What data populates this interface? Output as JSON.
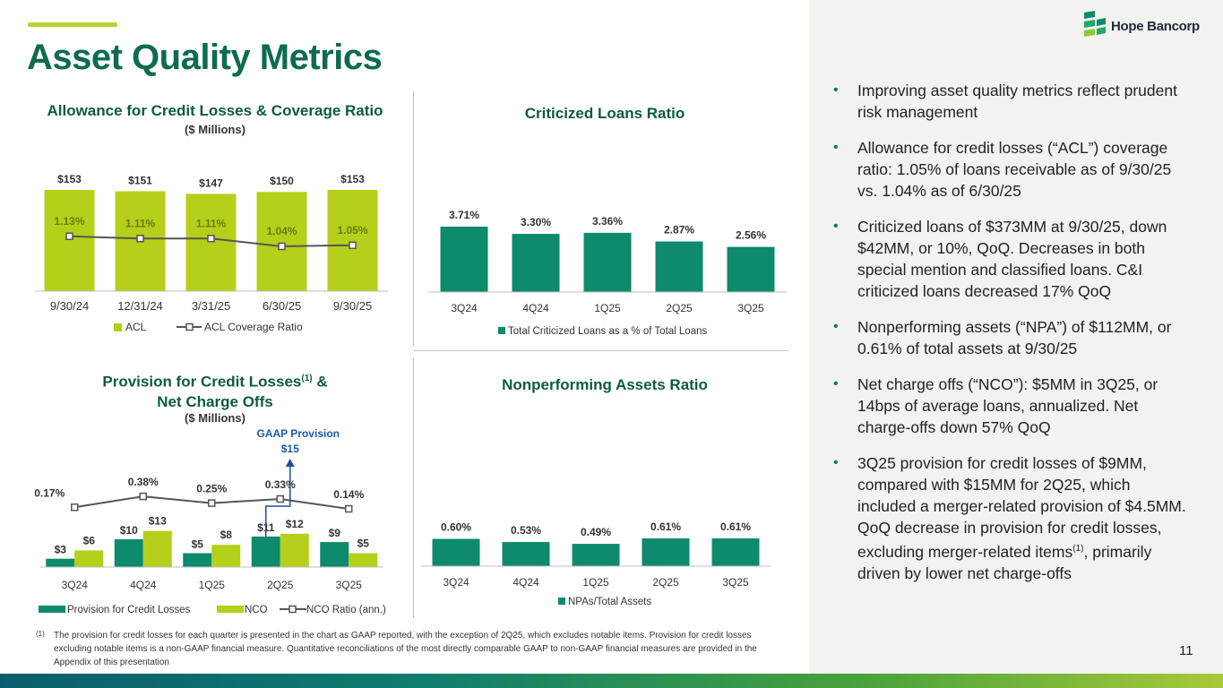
{
  "page": {
    "title": "Asset Quality Metrics",
    "page_number": "11",
    "colors": {
      "brand_green": "#0d6b4f",
      "lime": "#b7d334",
      "teal": "#0e8a6c",
      "panel_bg": "#f2f2ef"
    }
  },
  "logo": {
    "text": "Hope Bancorp",
    "icon": "hope-bancorp-mark-icon"
  },
  "bullets": [
    {
      "text": "Improving asset quality metrics reflect prudent risk management"
    },
    {
      "text": "Allowance for credit losses (“ACL”) coverage ratio: 1.05% of loans receivable as of 9/30/25 vs. 1.04% as of 6/30/25"
    },
    {
      "text": "Criticized loans of $373MM at 9/30/25, down $42MM, or 10%, QoQ. Decreases in both special mention and classified loans. C&I criticized loans decreased 17% QoQ"
    },
    {
      "text": "Nonperforming assets (“NPA”) of $112MM, or 0.61% of total assets at 9/30/25"
    },
    {
      "text": "Net charge offs (“NCO”): $5MM in 3Q25, or 14bps of average loans, annualized. Net charge-offs down 57% QoQ"
    },
    {
      "text_before": "3Q25 provision for credit losses of $9MM, compared with $15MM for 2Q25, which included a merger-related provision of $4.5MM. QoQ decrease in provision for credit losses, excluding merger-related items",
      "sup": "(1)",
      "text_after": ", primarily driven by lower net charge-offs"
    }
  ],
  "footnote": {
    "marker": "(1)",
    "text": "The provision for credit losses for each quarter is presented in the chart as GAAP reported, with the exception of 2Q25, which excludes notable items. Provision for credit losses excluding notable items is a non-GAAP financial measure. Quantitative reconciliations of the most directly comparable GAAP to non-GAAP financial measures are provided in the Appendix of this presentation"
  },
  "chart_data": [
    {
      "id": "acl",
      "type": "bar",
      "title": "Allowance for Credit Losses & Coverage Ratio",
      "subtitle": "($ Millions)",
      "categories": [
        "9/30/24",
        "12/31/24",
        "3/31/25",
        "6/30/25",
        "9/30/25"
      ],
      "series": [
        {
          "name": "ACL",
          "type": "bar",
          "color": "#b5cf1a",
          "values": [
            153,
            151,
            147,
            150,
            153
          ],
          "labels": [
            "$153",
            "$151",
            "$147",
            "$150",
            "$153"
          ]
        },
        {
          "name": "ACL Coverage Ratio",
          "type": "line",
          "color": "#555555",
          "values": [
            1.13,
            1.11,
            1.11,
            1.04,
            1.05
          ],
          "labels": [
            "1.13%",
            "1.11%",
            "1.11%",
            "1.04%",
            "1.05%"
          ]
        }
      ],
      "legend": "bottom"
    },
    {
      "id": "criticized",
      "type": "bar",
      "title": "Criticized Loans Ratio",
      "categories": [
        "3Q24",
        "4Q24",
        "1Q25",
        "2Q25",
        "3Q25"
      ],
      "series": [
        {
          "name": "Total Criticized Loans as a % of Total Loans",
          "color": "#0e8a6c",
          "values": [
            3.71,
            3.3,
            3.36,
            2.87,
            2.56
          ],
          "labels": [
            "3.71%",
            "3.30%",
            "3.36%",
            "2.87%",
            "2.56%"
          ]
        }
      ],
      "legend": "bottom"
    },
    {
      "id": "provision",
      "type": "bar",
      "title_line1": "Provision for Credit Losses",
      "title_sup": "(1)",
      "title_amp": " &",
      "title_line2": "Net Charge Offs",
      "subtitle": "($ Millions)",
      "categories": [
        "3Q24",
        "4Q24",
        "1Q25",
        "2Q25",
        "3Q25"
      ],
      "series": [
        {
          "name": "Provision for Credit Losses",
          "color": "#0e8a6c",
          "values": [
            3,
            10,
            5,
            11,
            9
          ],
          "labels": [
            "$3",
            "$10",
            "$5",
            "$11",
            "$9"
          ]
        },
        {
          "name": "NCO",
          "color": "#b5cf1a",
          "values": [
            6,
            13,
            8,
            12,
            5
          ],
          "labels": [
            "$6",
            "$13",
            "$8",
            "$12",
            "$5"
          ]
        },
        {
          "name": "NCO Ratio (ann.)",
          "type": "line",
          "color": "#555555",
          "values": [
            0.17,
            0.38,
            0.25,
            0.33,
            0.14
          ],
          "labels": [
            "0.17%",
            "0.38%",
            "0.25%",
            "0.33%",
            "0.14%"
          ]
        }
      ],
      "annotation": {
        "label": "GAAP Provision",
        "value": "$15",
        "category": "2Q25"
      },
      "legend": "bottom"
    },
    {
      "id": "npa",
      "type": "bar",
      "title": "Nonperforming Assets Ratio",
      "categories": [
        "3Q24",
        "4Q24",
        "1Q25",
        "2Q25",
        "3Q25"
      ],
      "series": [
        {
          "name": "NPAs/Total Assets",
          "color": "#0e8a6c",
          "values": [
            0.6,
            0.53,
            0.49,
            0.61,
            0.61
          ],
          "labels": [
            "0.60%",
            "0.53%",
            "0.49%",
            "0.61%",
            "0.61%"
          ]
        }
      ],
      "legend": "bottom"
    }
  ]
}
